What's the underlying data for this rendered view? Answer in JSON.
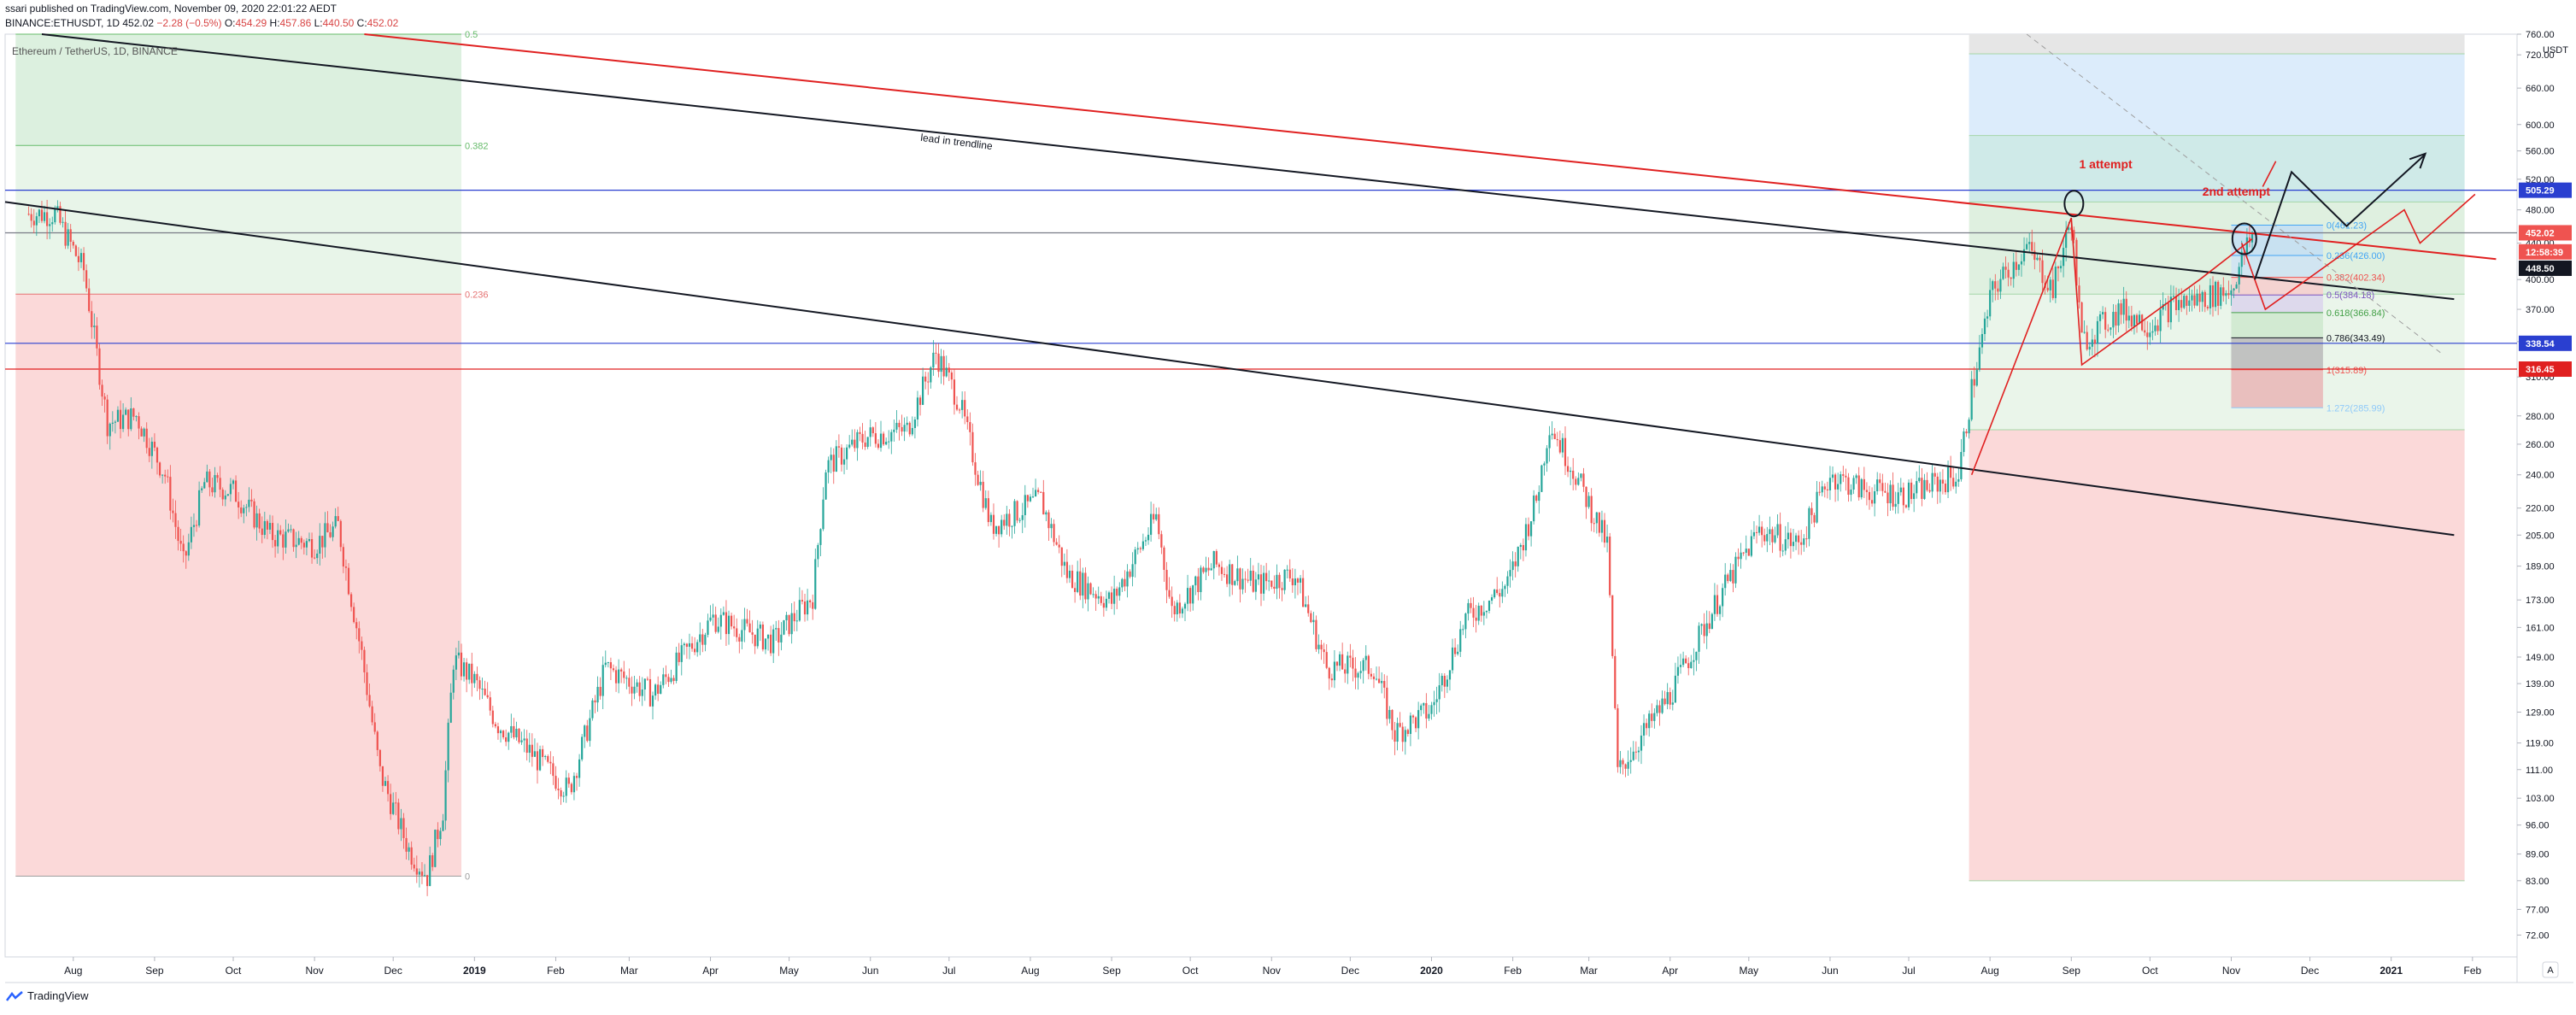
{
  "header": {
    "published_line": "ssari published on TradingView.com, November 09, 2020 22:01:22 AEDT",
    "symbol": "BINANCE:ETHUSDT, 1D",
    "last": "452.02",
    "change": "−2.28 (−0.5%)",
    "o_label": "O:",
    "o": "454.29",
    "h_label": "H:",
    "h": "457.86",
    "l_label": "L:",
    "l": "440.50",
    "c_label": "C:",
    "c": "452.02"
  },
  "footer": {
    "brand": "TradingView"
  },
  "colors": {
    "up": "#26a69a",
    "down": "#ef5350",
    "trend_black": "#131722",
    "trend_red": "#e02020",
    "fib_green": "#c8e6c9",
    "fib_red": "#f8c8c8",
    "hline_blue": "#2a3fd0",
    "hline_red": "#e02020"
  },
  "chart_data": {
    "type": "candlestick",
    "title": "Ethereum / TetherUS, 1D, BINANCE",
    "y_scale": "log",
    "ylim": [
      68,
      760
    ],
    "y_unit_label": "USDT",
    "y_ticks": [
      760,
      720,
      660,
      600,
      560,
      520,
      480,
      440,
      400,
      370,
      340,
      310,
      280,
      260,
      240,
      220,
      205,
      189,
      173,
      161,
      149,
      139,
      129,
      119,
      111,
      103,
      96,
      89,
      83,
      77,
      72
    ],
    "y_tick_labels": [
      "760.00",
      "720.00",
      "660.00",
      "600.00",
      "560.00",
      "520.00",
      "480.00",
      "440.00",
      "400.00",
      "370.00",
      "340.00",
      "310.00",
      "280.00",
      "260.00",
      "240.00",
      "220.00",
      "205.00",
      "189.00",
      "173.00",
      "161.00",
      "149.00",
      "139.00",
      "129.00",
      "119.00",
      "111.00",
      "103.00",
      "96.00",
      "89.00",
      "83.00",
      "77.00",
      "72.00"
    ],
    "x_ticks": [
      "Aug",
      "Sep",
      "Oct",
      "Nov",
      "Dec",
      "2019",
      "Feb",
      "Mar",
      "Apr",
      "May",
      "Jun",
      "Jul",
      "Aug",
      "Sep",
      "Oct",
      "Nov",
      "Dec",
      "2020",
      "Feb",
      "Mar",
      "Apr",
      "May",
      "Jun",
      "Jul",
      "Aug",
      "Sep",
      "Oct",
      "Nov",
      "Dec",
      "2021",
      "Feb"
    ],
    "x_tick_bold": [
      "2019",
      "2020",
      "2021"
    ],
    "price_series": [
      {
        "date": "2018-07-15",
        "close": 475
      },
      {
        "date": "2018-07-25",
        "close": 475
      },
      {
        "date": "2018-08-05",
        "close": 410
      },
      {
        "date": "2018-08-14",
        "close": 275
      },
      {
        "date": "2018-08-25",
        "close": 280
      },
      {
        "date": "2018-09-05",
        "close": 240
      },
      {
        "date": "2018-09-12",
        "close": 190
      },
      {
        "date": "2018-09-20",
        "close": 235
      },
      {
        "date": "2018-10-01",
        "close": 230
      },
      {
        "date": "2018-10-15",
        "close": 205
      },
      {
        "date": "2018-11-01",
        "close": 200
      },
      {
        "date": "2018-11-10",
        "close": 210
      },
      {
        "date": "2018-11-19",
        "close": 150
      },
      {
        "date": "2018-11-26",
        "close": 110
      },
      {
        "date": "2018-12-07",
        "close": 90
      },
      {
        "date": "2018-12-14",
        "close": 84
      },
      {
        "date": "2018-12-20",
        "close": 100
      },
      {
        "date": "2018-12-24",
        "close": 148
      },
      {
        "date": "2019-01-01",
        "close": 140
      },
      {
        "date": "2019-01-10",
        "close": 125
      },
      {
        "date": "2019-01-20",
        "close": 118
      },
      {
        "date": "2019-02-06",
        "close": 105
      },
      {
        "date": "2019-02-20",
        "close": 145
      },
      {
        "date": "2019-03-10",
        "close": 135
      },
      {
        "date": "2019-04-02",
        "close": 165
      },
      {
        "date": "2019-04-25",
        "close": 155
      },
      {
        "date": "2019-05-10",
        "close": 175
      },
      {
        "date": "2019-05-15",
        "close": 245
      },
      {
        "date": "2019-05-30",
        "close": 265
      },
      {
        "date": "2019-06-15",
        "close": 270
      },
      {
        "date": "2019-06-26",
        "close": 330
      },
      {
        "date": "2019-07-05",
        "close": 290
      },
      {
        "date": "2019-07-17",
        "close": 210
      },
      {
        "date": "2019-08-05",
        "close": 225
      },
      {
        "date": "2019-08-15",
        "close": 185
      },
      {
        "date": "2019-09-01",
        "close": 172
      },
      {
        "date": "2019-09-18",
        "close": 215
      },
      {
        "date": "2019-09-24",
        "close": 168
      },
      {
        "date": "2019-10-10",
        "close": 190
      },
      {
        "date": "2019-10-26",
        "close": 180
      },
      {
        "date": "2019-11-10",
        "close": 185
      },
      {
        "date": "2019-11-22",
        "close": 145
      },
      {
        "date": "2019-12-10",
        "close": 145
      },
      {
        "date": "2019-12-18",
        "close": 122
      },
      {
        "date": "2020-01-01",
        "close": 130
      },
      {
        "date": "2020-01-14",
        "close": 165
      },
      {
        "date": "2020-01-30",
        "close": 180
      },
      {
        "date": "2020-02-10",
        "close": 225
      },
      {
        "date": "2020-02-15",
        "close": 275
      },
      {
        "date": "2020-02-25",
        "close": 240
      },
      {
        "date": "2020-03-08",
        "close": 200
      },
      {
        "date": "2020-03-12",
        "close": 110
      },
      {
        "date": "2020-03-16",
        "close": 115
      },
      {
        "date": "2020-04-01",
        "close": 135
      },
      {
        "date": "2020-04-20",
        "close": 175
      },
      {
        "date": "2020-05-05",
        "close": 208
      },
      {
        "date": "2020-05-20",
        "close": 200
      },
      {
        "date": "2020-06-01",
        "close": 240
      },
      {
        "date": "2020-06-15",
        "close": 230
      },
      {
        "date": "2020-07-01",
        "close": 228
      },
      {
        "date": "2020-07-20",
        "close": 240
      },
      {
        "date": "2020-07-25",
        "close": 300
      },
      {
        "date": "2020-08-02",
        "close": 390
      },
      {
        "date": "2020-08-15",
        "close": 435
      },
      {
        "date": "2020-08-25",
        "close": 390
      },
      {
        "date": "2020-09-01",
        "close": 470
      },
      {
        "date": "2020-09-05",
        "close": 340
      },
      {
        "date": "2020-09-20",
        "close": 370
      },
      {
        "date": "2020-10-01",
        "close": 355
      },
      {
        "date": "2020-10-10",
        "close": 375
      },
      {
        "date": "2020-10-20",
        "close": 380
      },
      {
        "date": "2020-11-01",
        "close": 390
      },
      {
        "date": "2020-11-05",
        "close": 420
      },
      {
        "date": "2020-11-09",
        "close": 452
      }
    ],
    "horizontal_lines": [
      {
        "price": 505.29,
        "color": "blue",
        "label": "505.29"
      },
      {
        "price": 452.02,
        "color": "gray",
        "label": "452.02"
      },
      {
        "price": 338.54,
        "color": "blue",
        "label": "338.54"
      },
      {
        "price": 316.45,
        "color": "red",
        "label": "316.45"
      }
    ],
    "price_tags": [
      {
        "price": 505.29,
        "label": "505.29",
        "bg": "#2a3fd0"
      },
      {
        "price": 452.02,
        "label": "452.02",
        "bg": "#ef5350"
      },
      {
        "price": 430,
        "label": "12:58:39",
        "bg": "#ef5350"
      },
      {
        "price": 412,
        "label": "448.50",
        "bg": "#131722"
      },
      {
        "price": 338.54,
        "label": "338.54",
        "bg": "#2a3fd0"
      },
      {
        "price": 316.45,
        "label": "316.45",
        "bg": "#e02020"
      }
    ],
    "left_fib": {
      "x_start": "2018-07-10",
      "x_end": "2018-12-27",
      "levels": [
        {
          "price": 760,
          "label": "0.5"
        },
        {
          "price": 568,
          "label": "0.382"
        },
        {
          "price": 385,
          "label": "0.236"
        },
        {
          "price": 84,
          "label": "0"
        }
      ]
    },
    "right_fib_levels": [
      {
        "label": "0(461.23)",
        "price": 461.23
      },
      {
        "label": "0.236(426.00)",
        "price": 426.0
      },
      {
        "label": "0.382(402.34)",
        "price": 402.34
      },
      {
        "label": "0.5(384.18)",
        "price": 384.18
      },
      {
        "label": "0.618(366.84)",
        "price": 366.84
      },
      {
        "label": "0.786(343.49)",
        "price": 343.49
      },
      {
        "label": "1(315.89)",
        "price": 315.89
      },
      {
        "label": "1.272(285.99)",
        "price": 285.99
      }
    ],
    "annotations": [
      {
        "text": "lead in trendline",
        "date": "2019-06-20",
        "price": 575
      },
      {
        "text": "1 attempt",
        "date": "2020-09-04",
        "price": 535
      },
      {
        "text": "2nd attempt",
        "date": "2020-10-21",
        "price": 498
      }
    ],
    "trendlines": [
      {
        "color": "black",
        "from": {
          "date": "2018-07-20",
          "price": 760
        },
        "to": {
          "date": "2021-01-25",
          "price": 380
        }
      },
      {
        "color": "black",
        "from": {
          "date": "2018-07-06",
          "price": 490
        },
        "to": {
          "date": "2021-01-25",
          "price": 205
        }
      },
      {
        "color": "red",
        "from": {
          "date": "2018-11-20",
          "price": 760
        },
        "to": {
          "date": "2021-02-10",
          "price": 422
        }
      }
    ]
  }
}
